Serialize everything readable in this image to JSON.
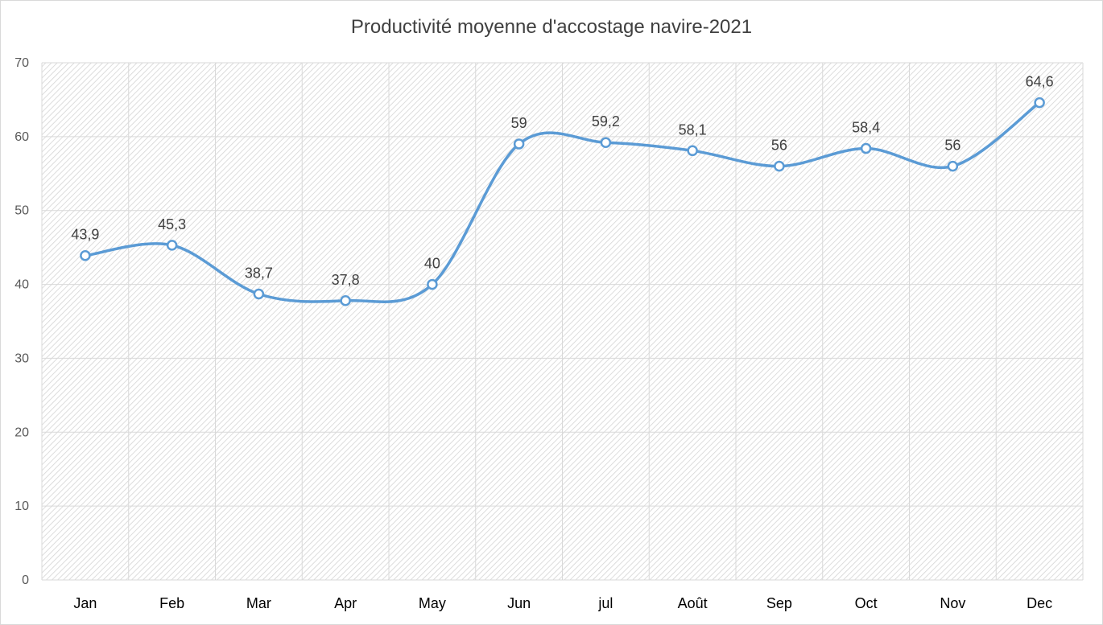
{
  "chart_data": {
    "type": "line",
    "title": "Productivité moyenne d'accostage navire-2021",
    "categories": [
      "Jan",
      "Feb",
      "Mar",
      "Apr",
      "May",
      "Jun",
      "jul",
      "Août",
      "Sep",
      "Oct",
      "Nov",
      "Dec"
    ],
    "values": [
      43.9,
      45.3,
      38.7,
      37.8,
      40,
      59,
      59.2,
      58.1,
      56,
      58.4,
      56,
      64.6
    ],
    "data_labels": [
      "43,9",
      "45,3",
      "38,7",
      "37,8",
      "40",
      "59",
      "59,2",
      "58,1",
      "56",
      "58,4",
      "56",
      "64,6"
    ],
    "ylim": [
      0,
      70
    ],
    "yticks": [
      0,
      10,
      20,
      30,
      40,
      50,
      60,
      70
    ],
    "smooth": true,
    "grid": true,
    "legend": "none",
    "colors": {
      "line": "#5b9bd5",
      "marker_fill": "#ffffff",
      "grid": "#d9d9d9",
      "plot_pattern": "#d4d4d4"
    }
  }
}
